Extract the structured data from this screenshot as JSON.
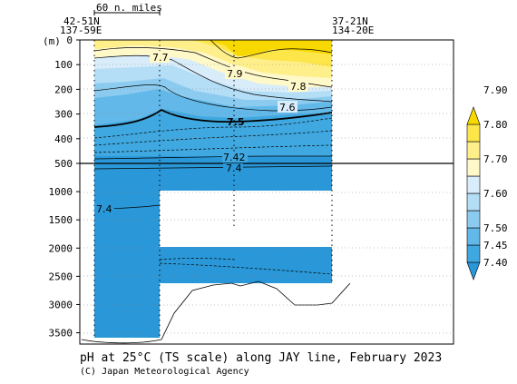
{
  "chart_data": {
    "type": "contour-section",
    "title": "pH at 25°C (TS scale) along JAY line, February 2023",
    "credit": "(C) Japan Meteorological Agency",
    "yunit": "(m)",
    "scale_label": "60 n. miles",
    "left_station": {
      "lat": "42-51N",
      "lon": "137-59E"
    },
    "right_station": {
      "lat": "37-21N",
      "lon": "134-20E"
    },
    "upper_y_ticks": [
      0,
      100,
      200,
      300,
      400,
      500
    ],
    "lower_y_ticks": [
      500,
      1000,
      1500,
      2000,
      2500,
      3000,
      3500
    ],
    "colorbar": {
      "levels": [
        7.4,
        7.45,
        7.5,
        7.55,
        7.6,
        7.65,
        7.7,
        7.75,
        7.8,
        7.85,
        7.9
      ],
      "tick_labels": [
        "7.90",
        "7.80",
        "7.70",
        "7.60",
        "7.50",
        "7.45",
        "7.40"
      ],
      "colors": [
        "#2a98d8",
        "#40a8e0",
        "#62b8e8",
        "#8ccbf0",
        "#b4ddf6",
        "#d8ecfa",
        "#fff8c8",
        "#ffef8a",
        "#fde64a",
        "#f7d800"
      ]
    },
    "contour_labels": [
      "7.7",
      "7.9",
      "7.8",
      "7.6",
      "7.5",
      "7.42",
      "7.4",
      "7.4"
    ]
  }
}
